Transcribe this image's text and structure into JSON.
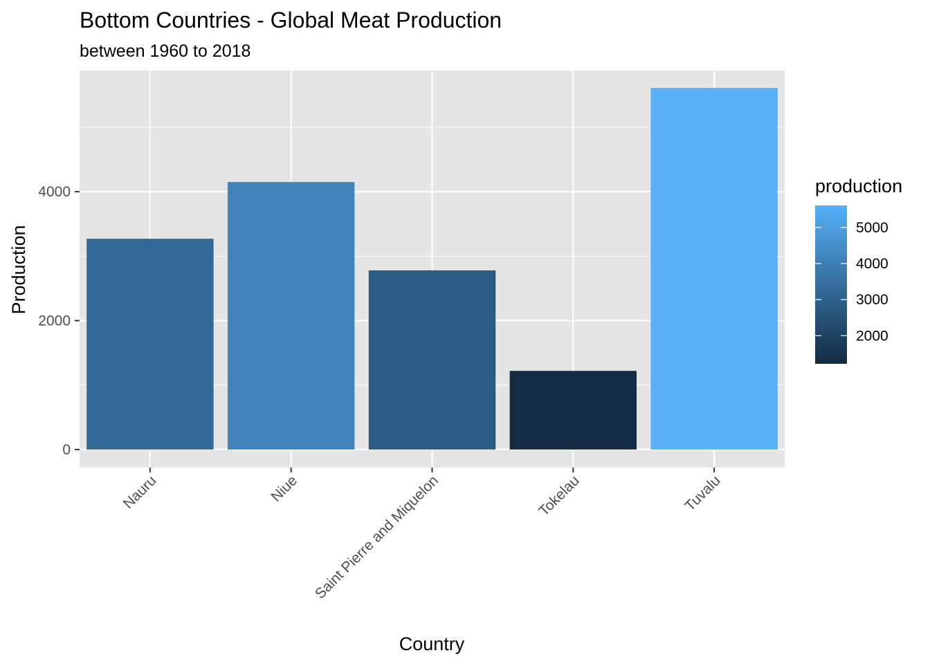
{
  "chart_data": {
    "type": "bar",
    "title": "Bottom Countries - Global Meat Production",
    "subtitle": "between 1960 to 2018",
    "xlabel": "Country",
    "ylabel": "Production",
    "categories": [
      "Nauru",
      "Niue",
      "Saint Pierre and Miquelon",
      "Tokelau",
      "Tuvalu"
    ],
    "values": [
      3270,
      4150,
      2780,
      1220,
      5610
    ],
    "ylim": [
      -280,
      5880
    ],
    "y_ticks": [
      0,
      2000,
      4000
    ],
    "y_tick_labels": [
      "0",
      "2000",
      "4000"
    ],
    "y_minor_ticks": [
      1000,
      3000,
      5000
    ],
    "grid": true,
    "panel_background": "#e5e5e5",
    "grid_color": "#ffffff",
    "legend": {
      "title": "production",
      "placement": "right",
      "type": "gradient",
      "range": [
        1220,
        5610
      ],
      "ticks": [
        2000,
        3000,
        4000,
        5000
      ],
      "tick_labels": [
        "2000",
        "3000",
        "4000",
        "5000"
      ],
      "low_color": "#132b43",
      "high_color": "#56b1f7"
    }
  }
}
